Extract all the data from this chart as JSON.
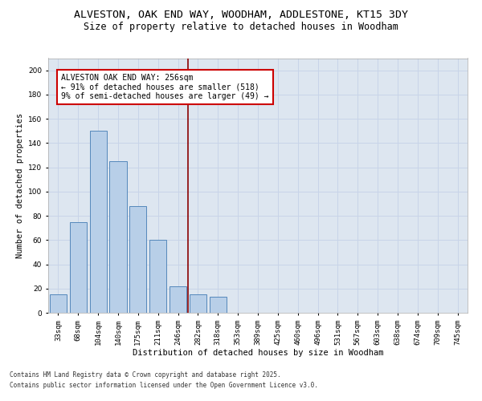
{
  "title_line1": "ALVESTON, OAK END WAY, WOODHAM, ADDLESTONE, KT15 3DY",
  "title_line2": "Size of property relative to detached houses in Woodham",
  "xlabel": "Distribution of detached houses by size in Woodham",
  "ylabel": "Number of detached properties",
  "categories": [
    "33sqm",
    "68sqm",
    "104sqm",
    "140sqm",
    "175sqm",
    "211sqm",
    "246sqm",
    "282sqm",
    "318sqm",
    "353sqm",
    "389sqm",
    "425sqm",
    "460sqm",
    "496sqm",
    "531sqm",
    "567sqm",
    "603sqm",
    "638sqm",
    "674sqm",
    "709sqm",
    "745sqm"
  ],
  "values": [
    15,
    75,
    150,
    125,
    88,
    60,
    22,
    15,
    13,
    0,
    0,
    0,
    0,
    0,
    0,
    0,
    0,
    0,
    0,
    0,
    0
  ],
  "bar_color": "#b8cfe8",
  "bar_edge_color": "#5588bb",
  "grid_color": "#c8d4e8",
  "background_color": "#dde6f0",
  "annotation_text": "ALVESTON OAK END WAY: 256sqm\n← 91% of detached houses are smaller (518)\n9% of semi-detached houses are larger (49) →",
  "annotation_box_color": "#cc0000",
  "property_line_x": 6.5,
  "ylim": [
    0,
    210
  ],
  "yticks": [
    0,
    20,
    40,
    60,
    80,
    100,
    120,
    140,
    160,
    180,
    200
  ],
  "footer_line1": "Contains HM Land Registry data © Crown copyright and database right 2025.",
  "footer_line2": "Contains public sector information licensed under the Open Government Licence v3.0.",
  "title_fontsize": 9.5,
  "subtitle_fontsize": 8.5,
  "axis_label_fontsize": 7.5,
  "tick_fontsize": 6.5,
  "annotation_fontsize": 7,
  "footer_fontsize": 5.5
}
